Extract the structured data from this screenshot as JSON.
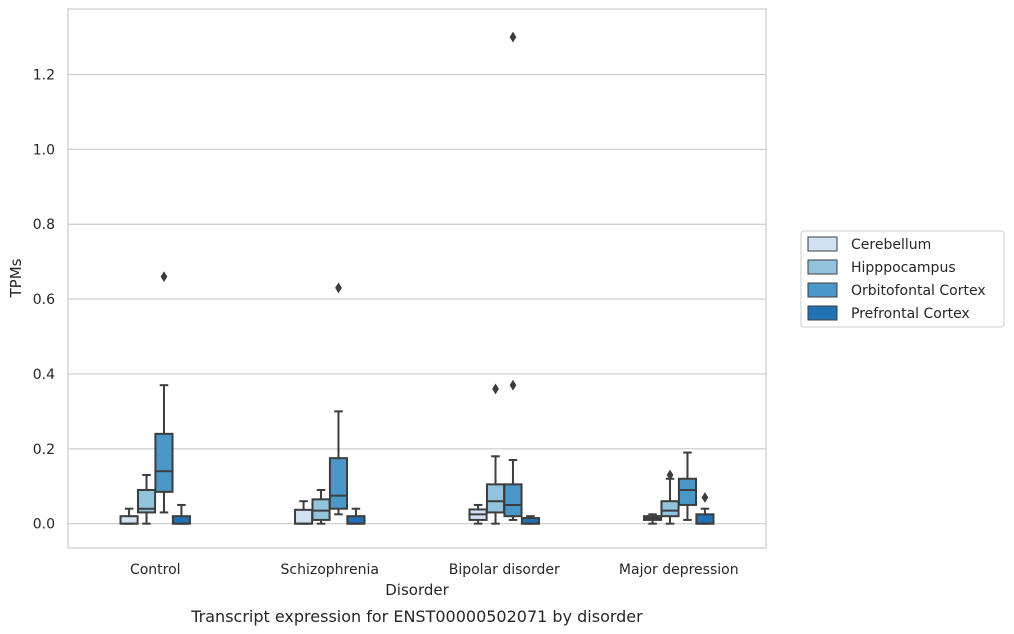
{
  "chart_data": {
    "type": "box",
    "title": "Transcript expression for ENST00000502071 by disorder",
    "xlabel": "Disorder",
    "ylabel": "TPMs",
    "categories": [
      "Control",
      "Schizophrenia",
      "Bipolar disorder",
      "Major depression"
    ],
    "ylim": [
      -0.065,
      1.375
    ],
    "yticks": [
      0.0,
      0.2,
      0.4,
      0.6,
      0.8,
      1.0,
      1.2
    ],
    "ytick_labels": [
      "0.0",
      "0.2",
      "0.4",
      "0.6",
      "0.8",
      "1.0",
      "1.2"
    ],
    "grid": "horizontal",
    "legend_position": "center-right",
    "series": [
      {
        "name": "Cerebellum",
        "color": "#cfe1f2",
        "boxes": [
          {
            "min": 0.0,
            "q1": 0.0,
            "median": 0.0,
            "q3": 0.02,
            "max": 0.04,
            "outliers": []
          },
          {
            "min": 0.0,
            "q1": 0.0,
            "median": 0.0,
            "q3": 0.037,
            "max": 0.06,
            "outliers": []
          },
          {
            "min": 0.0,
            "q1": 0.01,
            "median": 0.025,
            "q3": 0.038,
            "max": 0.05,
            "outliers": []
          },
          {
            "min": 0.0,
            "q1": 0.01,
            "median": 0.015,
            "q3": 0.02,
            "max": 0.025,
            "outliers": []
          }
        ]
      },
      {
        "name": "Hipppocampus",
        "color": "#93c4de",
        "boxes": [
          {
            "min": 0.0,
            "q1": 0.03,
            "median": 0.04,
            "q3": 0.09,
            "max": 0.13,
            "outliers": []
          },
          {
            "min": 0.0,
            "q1": 0.01,
            "median": 0.035,
            "q3": 0.065,
            "max": 0.09,
            "outliers": []
          },
          {
            "min": 0.0,
            "q1": 0.03,
            "median": 0.06,
            "q3": 0.105,
            "max": 0.18,
            "outliers": [
              0.36
            ]
          },
          {
            "min": 0.0,
            "q1": 0.02,
            "median": 0.035,
            "q3": 0.06,
            "max": 0.12,
            "outliers": [
              0.13
            ]
          }
        ]
      },
      {
        "name": "Orbitofontal Cortex",
        "color": "#4a98c9",
        "boxes": [
          {
            "min": 0.03,
            "q1": 0.085,
            "median": 0.14,
            "q3": 0.24,
            "max": 0.37,
            "outliers": [
              0.66
            ]
          },
          {
            "min": 0.025,
            "q1": 0.04,
            "median": 0.075,
            "q3": 0.175,
            "max": 0.3,
            "outliers": [
              0.63
            ]
          },
          {
            "min": 0.01,
            "q1": 0.02,
            "median": 0.05,
            "q3": 0.105,
            "max": 0.17,
            "outliers": [
              0.37,
              1.3
            ]
          },
          {
            "min": 0.01,
            "q1": 0.05,
            "median": 0.09,
            "q3": 0.12,
            "max": 0.19,
            "outliers": []
          }
        ]
      },
      {
        "name": "Prefrontal Cortex",
        "color": "#2171b5",
        "boxes": [
          {
            "min": 0.0,
            "q1": 0.0,
            "median": 0.0,
            "q3": 0.02,
            "max": 0.05,
            "outliers": []
          },
          {
            "min": 0.0,
            "q1": 0.0,
            "median": 0.0,
            "q3": 0.02,
            "max": 0.04,
            "outliers": []
          },
          {
            "min": 0.0,
            "q1": 0.0,
            "median": 0.0,
            "q3": 0.015,
            "max": 0.02,
            "outliers": []
          },
          {
            "min": 0.0,
            "q1": 0.0,
            "median": 0.0,
            "q3": 0.025,
            "max": 0.04,
            "outliers": [
              0.07
            ]
          }
        ]
      }
    ]
  }
}
